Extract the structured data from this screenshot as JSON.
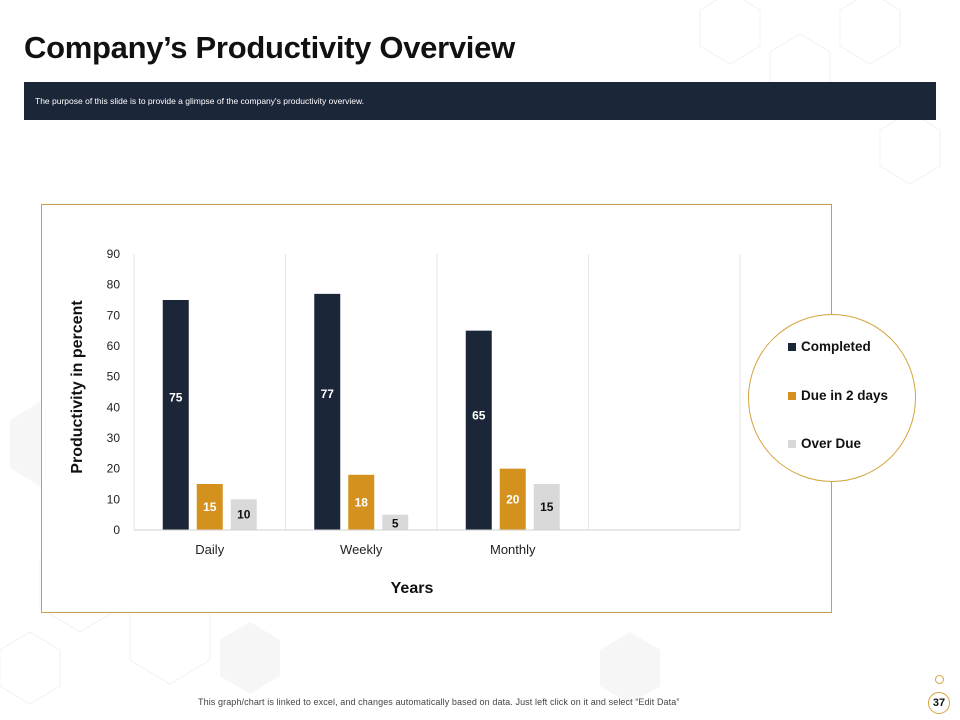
{
  "slide": {
    "title": "Company’s Productivity Overview",
    "purpose_text": "The purpose of this slide is to provide a glimpse of the company's productivity overview.",
    "footer_note": "This graph/chart is linked to excel, and changes automatically based on data. Just left click on it and select “Edit Data”",
    "page_number": "37"
  },
  "colors": {
    "banner": "#1b2639",
    "accent": "#d4a33d"
  },
  "chart_data": {
    "type": "bar",
    "title": "",
    "xlabel": "Years",
    "ylabel": "Productivity in percent",
    "categories": [
      "Daily",
      "Weekly",
      "Monthly"
    ],
    "series": [
      {
        "name": "Completed",
        "color": "#1b2639",
        "values": [
          75,
          77,
          65
        ]
      },
      {
        "name": "Due in 2 days",
        "color": "#d4911e",
        "values": [
          15,
          18,
          20
        ]
      },
      {
        "name": "Over Due",
        "color": "#d9d9d9",
        "values": [
          10,
          5,
          15
        ]
      }
    ],
    "ylim": [
      0,
      90
    ],
    "yticks": [
      0,
      10,
      20,
      30,
      40,
      50,
      60,
      70,
      80,
      90
    ],
    "grid": "vertical",
    "legend_position": "right"
  }
}
